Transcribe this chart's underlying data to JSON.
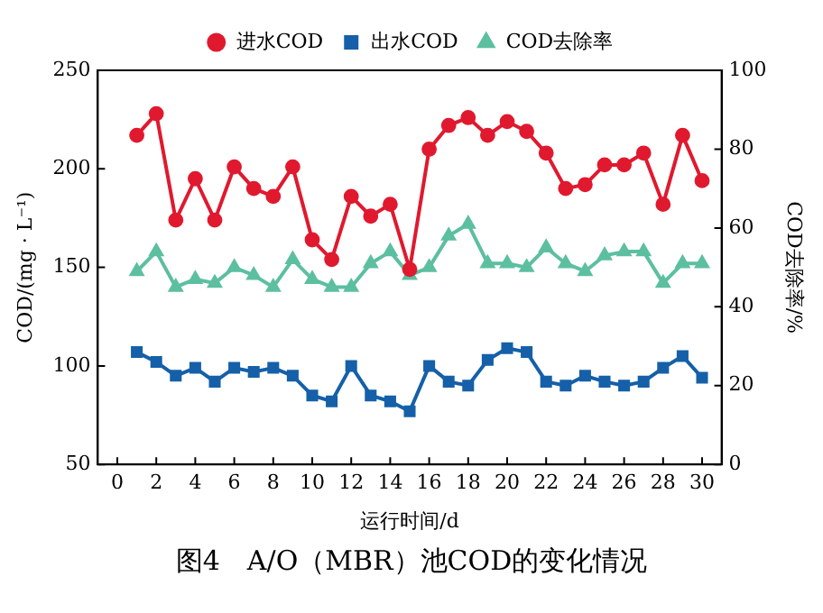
{
  "chart_data": {
    "type": "line",
    "xlabel": "运行时间/d",
    "ylabel": "COD/(mg · L⁻¹)",
    "y2label": "COD去除率/%",
    "x": [
      1,
      2,
      3,
      4,
      5,
      6,
      7,
      8,
      9,
      10,
      11,
      12,
      13,
      14,
      15,
      16,
      17,
      18,
      19,
      20,
      21,
      22,
      23,
      24,
      25,
      26,
      27,
      28,
      29,
      30
    ],
    "xlim": [
      -1,
      31
    ],
    "xticks": [
      0,
      2,
      4,
      6,
      8,
      10,
      12,
      14,
      16,
      18,
      20,
      22,
      24,
      26,
      28,
      30
    ],
    "ylim": [
      50,
      250
    ],
    "yticks": [
      50,
      100,
      150,
      200,
      250
    ],
    "y2lim": [
      0,
      100
    ],
    "y2ticks": [
      0,
      20,
      40,
      60,
      80,
      100
    ],
    "grid": false,
    "legend": "top",
    "series": [
      {
        "name": "进水COD",
        "color": "#e0192f",
        "marker": "circle",
        "values": [
          217,
          228,
          174,
          195,
          174,
          201,
          190,
          186,
          201,
          164,
          154,
          186,
          176,
          182,
          149,
          210,
          222,
          226,
          217,
          224,
          219,
          208,
          190,
          192,
          202,
          202,
          208,
          182,
          217,
          194
        ]
      },
      {
        "name": "出水COD",
        "color": "#1560a8",
        "marker": "square",
        "values": [
          107,
          102,
          95,
          99,
          92,
          99,
          97,
          99,
          95,
          85,
          82,
          100,
          85,
          82,
          77,
          100,
          92,
          90,
          103,
          109,
          107,
          92,
          90,
          95,
          92,
          90,
          92,
          99,
          105,
          94
        ]
      },
      {
        "name": "COD去除率",
        "color": "#5cbfa0",
        "marker": "triangle",
        "axis": "y2",
        "values": [
          49,
          54,
          45,
          47,
          46,
          50,
          48,
          45,
          52,
          47,
          45,
          45,
          51,
          54,
          48,
          50,
          58,
          61,
          51,
          51,
          50,
          55,
          51,
          49,
          53,
          54,
          54,
          46,
          51,
          51
        ]
      }
    ],
    "annotations": [
      "图4　A/O（MBR）池COD的变化情况"
    ]
  }
}
